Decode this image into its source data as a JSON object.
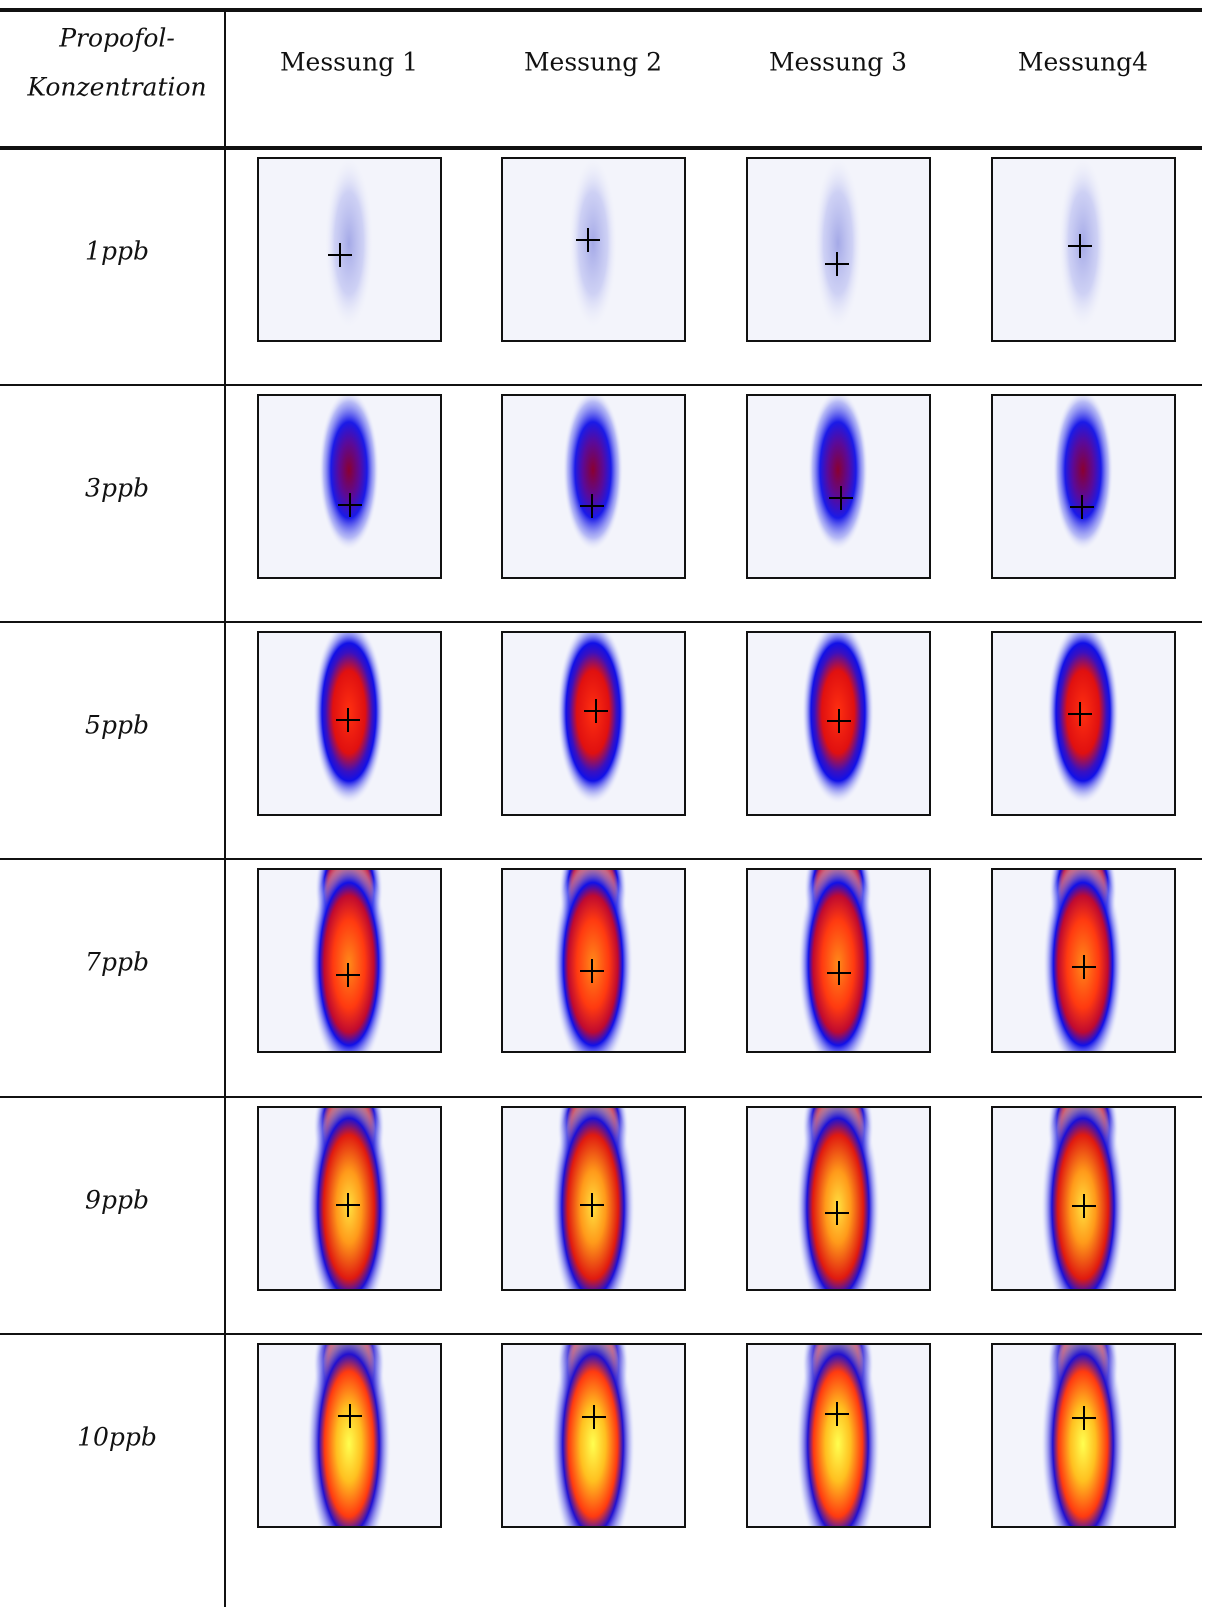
{
  "table": {
    "corner": [
      "Propofol-",
      "Konzentration"
    ],
    "columns": [
      "Messung 1",
      "Messung 2",
      "Messung 3",
      "Messung4"
    ],
    "rows": [
      "1ppb",
      "3ppb",
      "5ppb",
      "7ppb",
      "9ppb",
      "10ppb"
    ]
  }
}
